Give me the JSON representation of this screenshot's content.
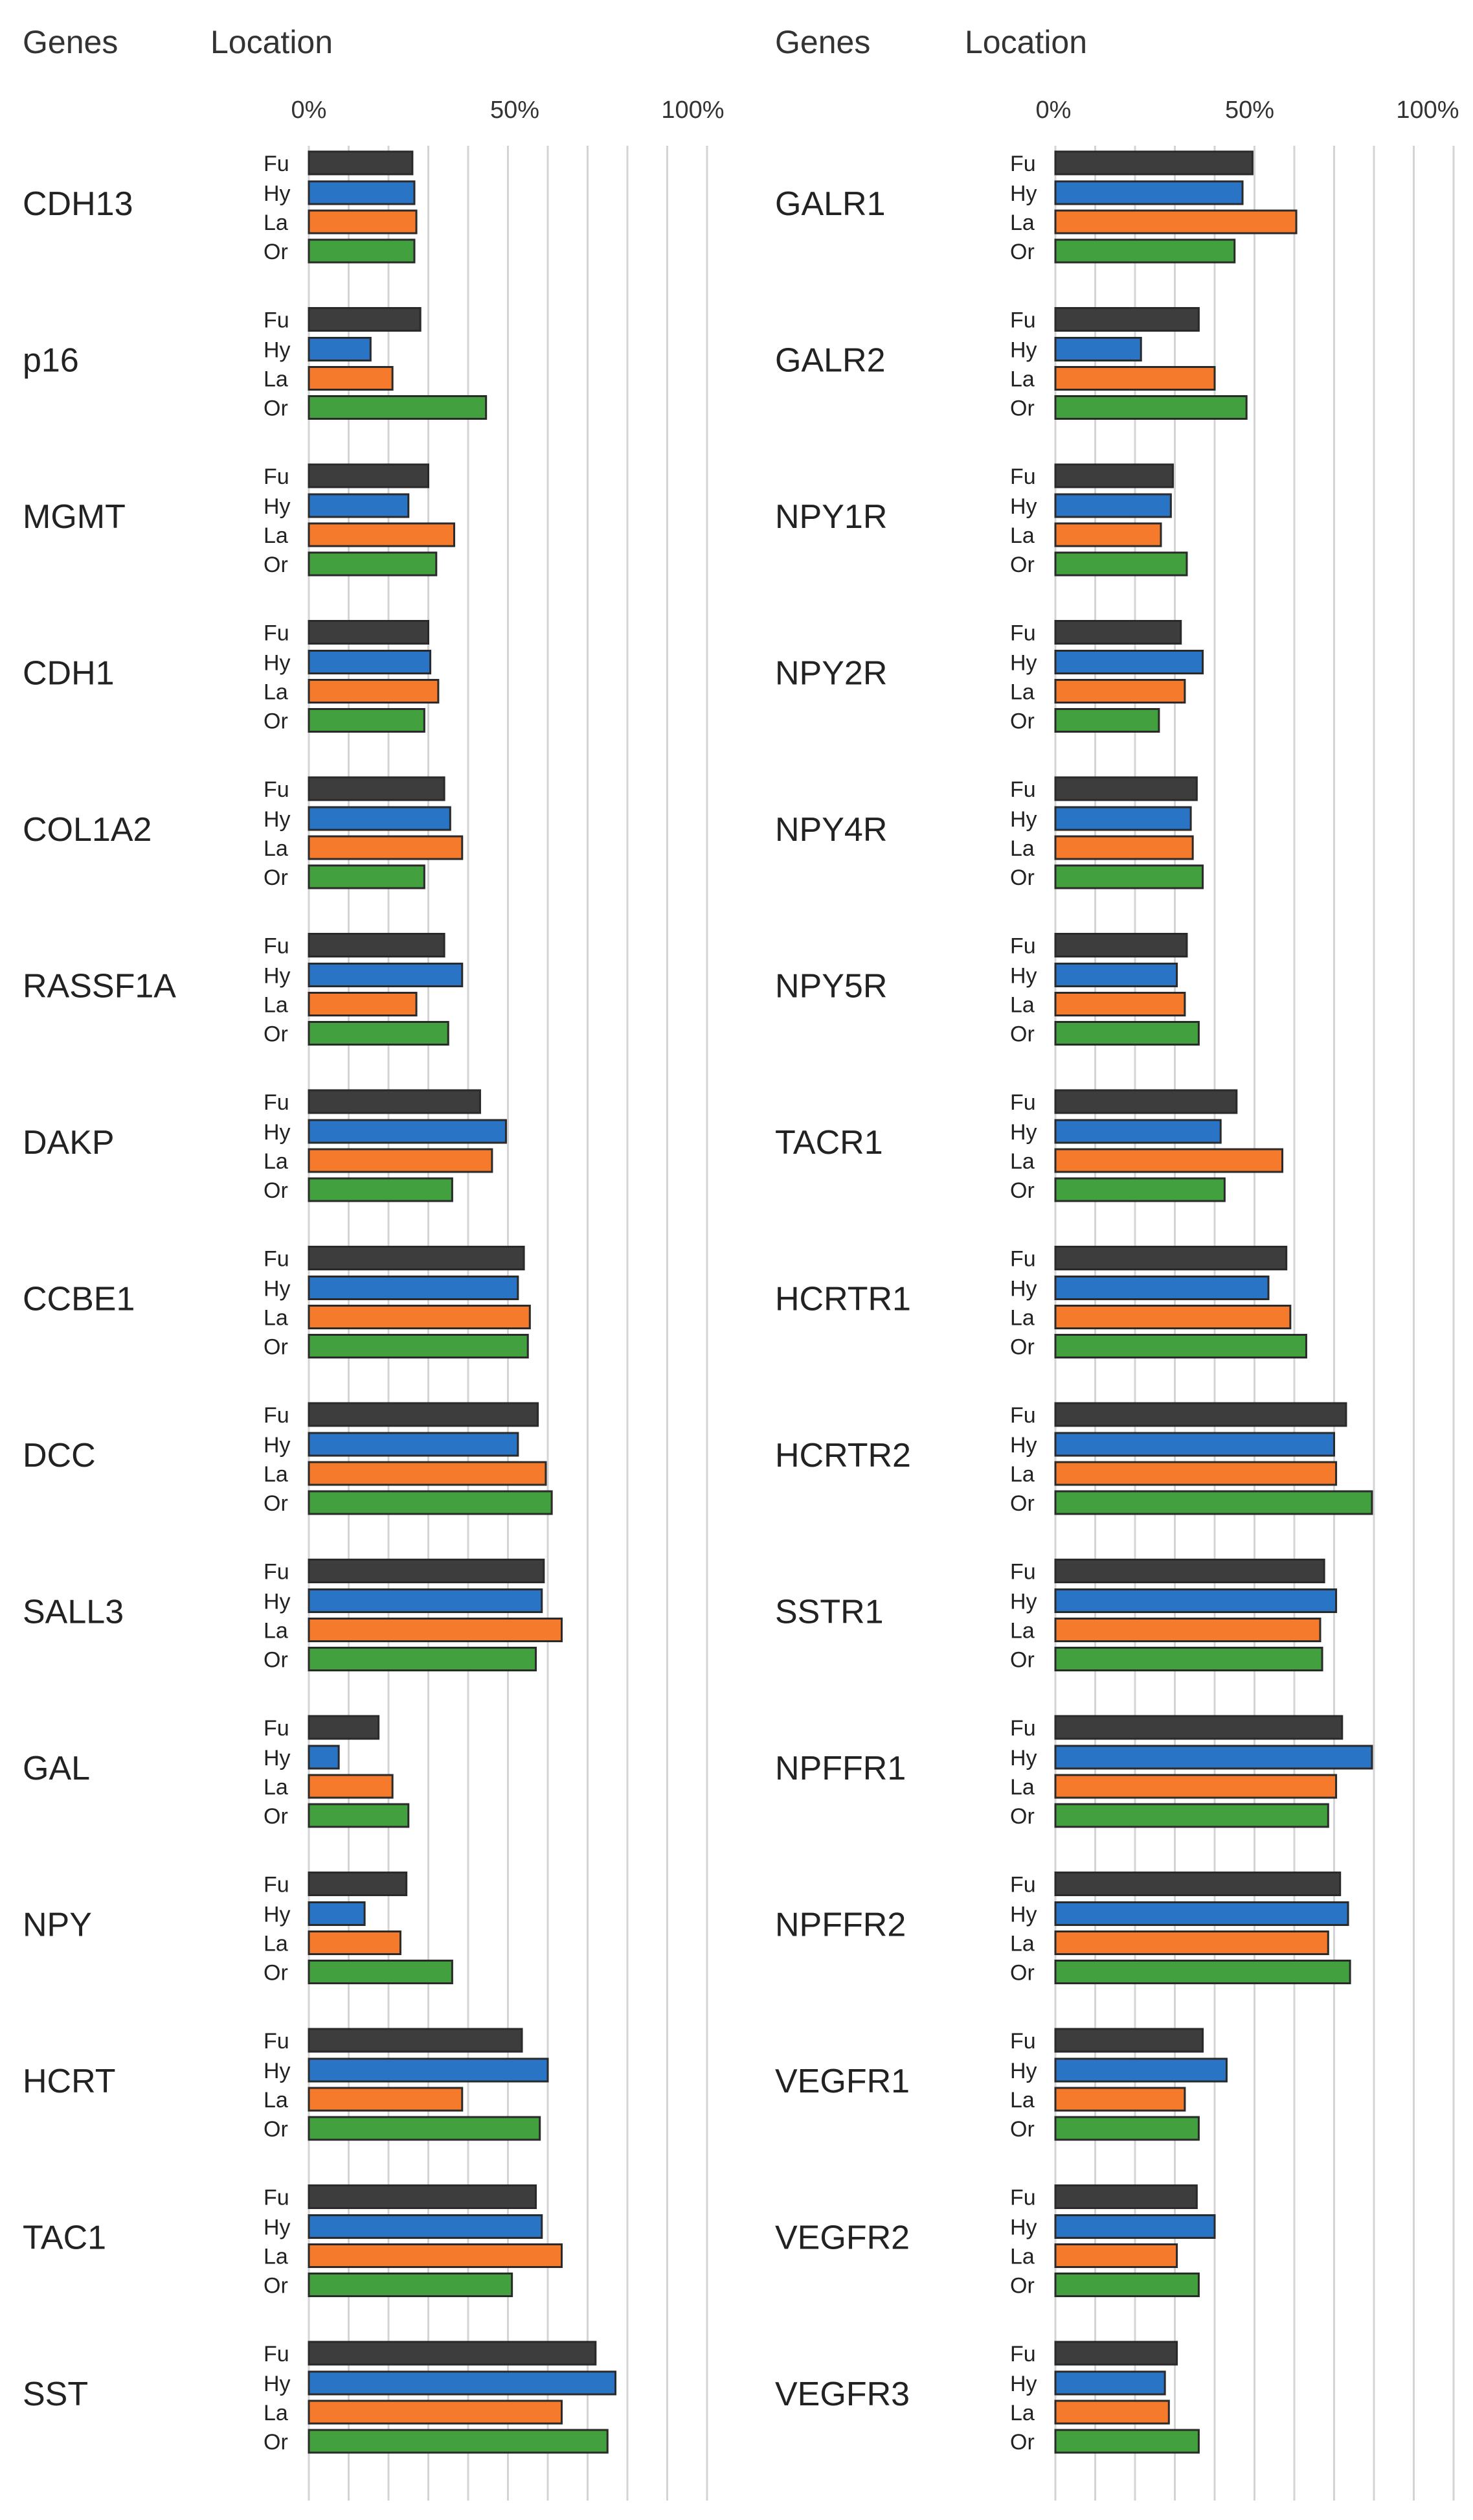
{
  "chart_data": {
    "type": "bar",
    "orientation": "horizontal",
    "headers": {
      "genes": "Genes",
      "location": "Location"
    },
    "x_ticks": [
      "0%",
      "50%",
      "100%"
    ],
    "xlim": [
      0,
      100
    ],
    "locations": [
      "Fu",
      "Hy",
      "La",
      "Or"
    ],
    "colors": {
      "Fu": "#3d3d3d",
      "Hy": "#2a74c6",
      "La": "#f57a2c",
      "Or": "#43a03e"
    },
    "panels": [
      {
        "genes": [
          {
            "name": "CDH13",
            "values": [
              26,
              26.5,
              27,
              26.5
            ]
          },
          {
            "name": "p16",
            "values": [
              28,
              15.5,
              21,
              44.5
            ]
          },
          {
            "name": "MGMT",
            "values": [
              30,
              25,
              36.5,
              32
            ]
          },
          {
            "name": "CDH1",
            "values": [
              30,
              30.5,
              32.5,
              29
            ]
          },
          {
            "name": "COL1A2",
            "values": [
              34,
              35.5,
              38.5,
              29
            ]
          },
          {
            "name": "RASSF1A",
            "values": [
              34,
              38.5,
              27,
              35
            ]
          },
          {
            "name": "DAKP",
            "values": [
              43,
              49.5,
              46,
              36
            ]
          },
          {
            "name": "CCBE1",
            "values": [
              54,
              52.5,
              55.5,
              55
            ]
          },
          {
            "name": "DCC",
            "values": [
              57.5,
              52.5,
              59.5,
              61
            ]
          },
          {
            "name": "SALL3",
            "values": [
              59,
              58.5,
              63.5,
              57
            ]
          },
          {
            "name": "GAL",
            "values": [
              17.5,
              7.5,
              21,
              25
            ]
          },
          {
            "name": "NPY",
            "values": [
              24.5,
              14,
              23,
              36
            ]
          },
          {
            "name": "HCRT",
            "values": [
              53.5,
              60,
              38.5,
              58
            ]
          },
          {
            "name": "TAC1",
            "values": [
              57,
              58.5,
              63.5,
              51
            ]
          },
          {
            "name": "SST",
            "values": [
              72,
              77,
              63.5,
              75
            ]
          }
        ]
      },
      {
        "genes": [
          {
            "name": "GALR1",
            "values": [
              49.5,
              47,
              60.5,
              45
            ]
          },
          {
            "name": "GALR2",
            "values": [
              36,
              21.5,
              40,
              48
            ]
          },
          {
            "name": "NPY1R",
            "values": [
              29.5,
              29,
              26.5,
              33
            ]
          },
          {
            "name": "NPY2R",
            "values": [
              31.5,
              37,
              32.5,
              26
            ]
          },
          {
            "name": "NPY4R",
            "values": [
              35.5,
              34,
              34.5,
              37
            ]
          },
          {
            "name": "NPY5R",
            "values": [
              33,
              30.5,
              32.5,
              36
            ]
          },
          {
            "name": "TACR1",
            "values": [
              45.5,
              41.5,
              57,
              42.5
            ]
          },
          {
            "name": "HCRTR1",
            "values": [
              58,
              53.5,
              59,
              63
            ]
          },
          {
            "name": "HCRTR2",
            "values": [
              73,
              70,
              70.5,
              79.5
            ]
          },
          {
            "name": "SSTR1",
            "values": [
              67.5,
              70.5,
              66.5,
              67
            ]
          },
          {
            "name": "NPFFR1",
            "values": [
              72,
              79.5,
              70.5,
              68.5
            ]
          },
          {
            "name": "NPFFR2",
            "values": [
              71.5,
              73.5,
              68.5,
              74
            ]
          },
          {
            "name": "VEGFR1",
            "values": [
              37,
              43,
              32.5,
              36
            ]
          },
          {
            "name": "VEGFR2",
            "values": [
              35.5,
              40,
              30.5,
              36
            ]
          },
          {
            "name": "VEGFR3",
            "values": [
              30.5,
              27.5,
              28.5,
              36
            ]
          }
        ]
      }
    ]
  }
}
